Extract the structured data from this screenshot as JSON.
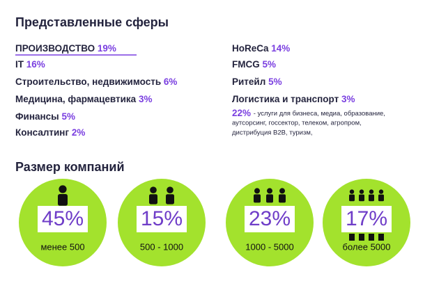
{
  "sectors": {
    "title": "Представленные сферы",
    "left": [
      {
        "name": "ПРОИЗВОДСТВО",
        "percent": "19%"
      },
      {
        "name": "IT",
        "percent": "16%"
      },
      {
        "name": "Строительство, недвижимость",
        "percent": "6%"
      },
      {
        "name": "Медицина, фармацевтика",
        "percent": "3%"
      },
      {
        "name": "Финансы",
        "percent": "5%"
      },
      {
        "name": "Консалтинг",
        "percent": "2%"
      }
    ],
    "right": [
      {
        "name": "HoReCa",
        "percent": "14%"
      },
      {
        "name": "FMCG",
        "percent": "5%"
      },
      {
        "name": "Ритейл",
        "percent": "5%"
      },
      {
        "name": "Логистика и транспорт",
        "percent": "3%"
      }
    ],
    "other": {
      "percent": "22%",
      "text_lines": [
        "- услуги для бизнеса, медиа, образование,",
        "аутсорсинг, госсектор, телеком, агропром,",
        "дистрибуция B2B, туризм,"
      ]
    }
  },
  "company_size": {
    "title": "Размер компаний",
    "items": [
      {
        "percent": "45%",
        "label": "менее 500"
      },
      {
        "percent": "15%",
        "label": "500 - 1000"
      },
      {
        "percent": "23%",
        "label": "1000 - 5000"
      },
      {
        "percent": "17%",
        "label": "более 5000"
      }
    ]
  }
}
